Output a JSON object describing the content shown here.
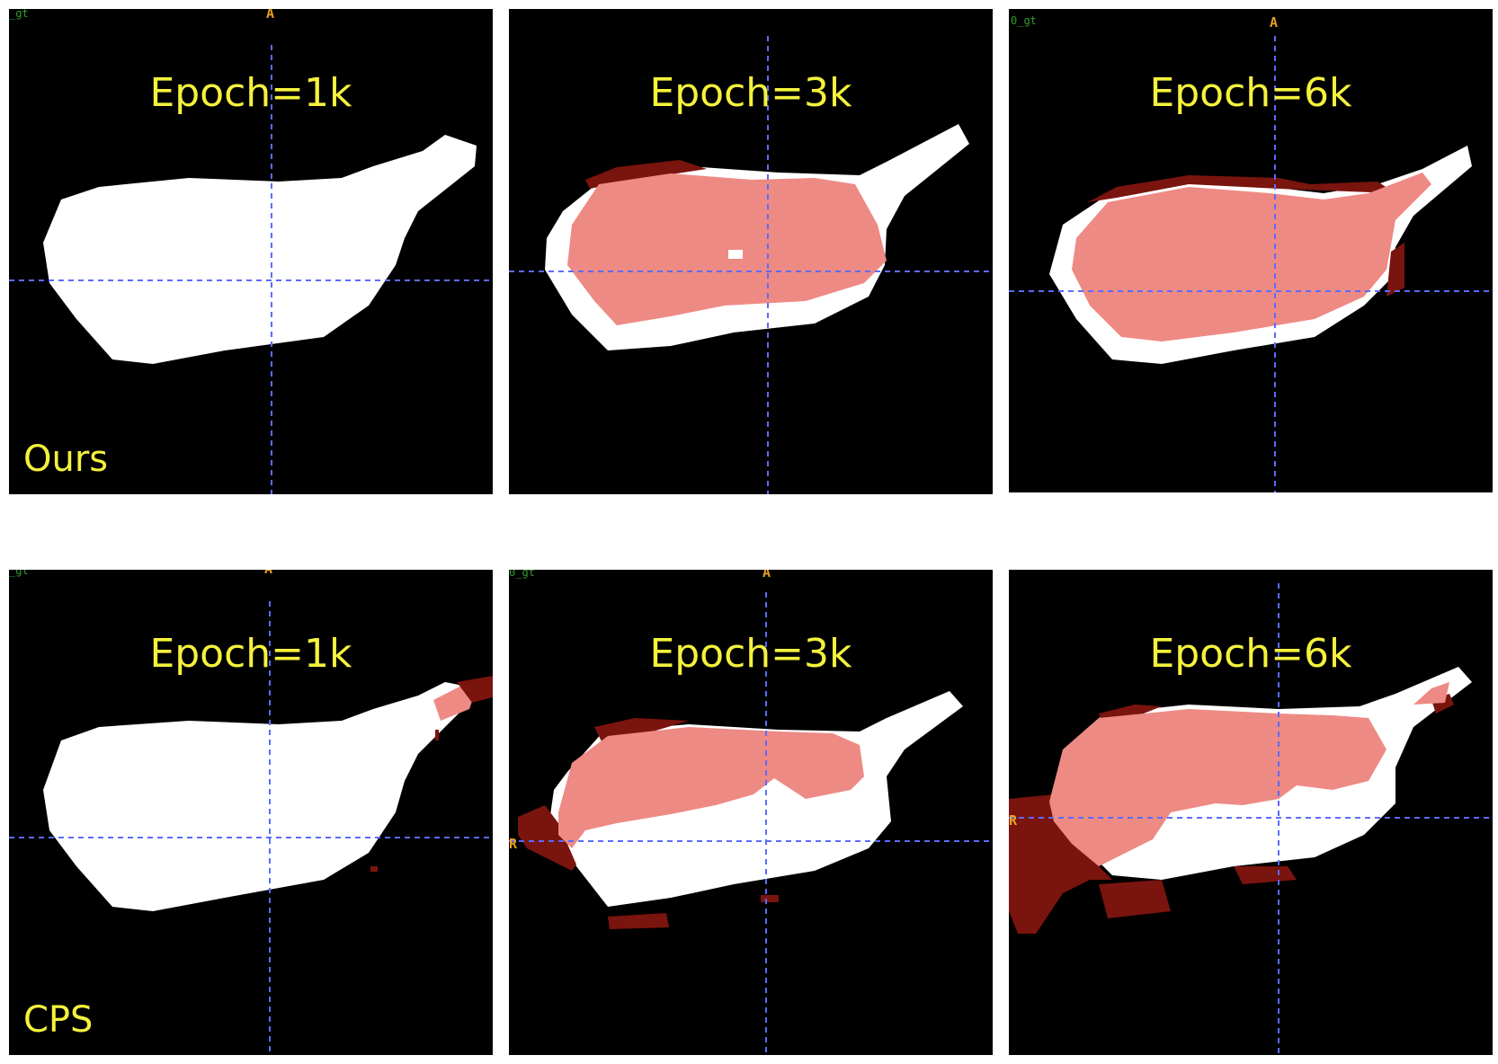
{
  "figure": {
    "rows": [
      {
        "method_label": "Ours",
        "panels": [
          {
            "epoch_label": "Epoch=1k",
            "corner_label": "_gt",
            "orientation_top": "A",
            "orientation_left": ""
          },
          {
            "epoch_label": "Epoch=3k",
            "corner_label": "",
            "orientation_top": "",
            "orientation_left": ""
          },
          {
            "epoch_label": "Epoch=6k",
            "corner_label": "0_gt",
            "orientation_top": "A",
            "orientation_left": ""
          }
        ]
      },
      {
        "method_label": "CPS",
        "panels": [
          {
            "epoch_label": "Epoch=1k",
            "corner_label": "_gt",
            "orientation_top": "A",
            "orientation_left": ""
          },
          {
            "epoch_label": "Epoch=3k",
            "corner_label": "0_gt",
            "orientation_top": "A",
            "orientation_left": "R"
          },
          {
            "epoch_label": "Epoch=6k",
            "corner_label": "",
            "orientation_top": "",
            "orientation_left": "R"
          }
        ]
      }
    ],
    "colors": {
      "background": "#000000",
      "ground_truth": "#ffffff",
      "prediction_overlap": "#ee8a84",
      "prediction_error": "#7a140e",
      "crosshair": "#5b6bff",
      "label_text": "#f4f23c",
      "orientation_text": "#e8a020",
      "corner_text": "#2f9e2f"
    }
  }
}
